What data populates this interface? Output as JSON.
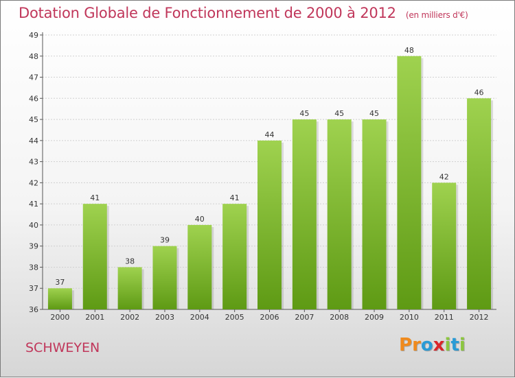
{
  "header": {
    "title": "Dotation Globale de Fonctionnement de 2000 à 2012",
    "unit": "(en milliers d'€)"
  },
  "footer": {
    "commune": "SCHWEYEN",
    "logo_letters": [
      "P",
      "r",
      "o",
      "x",
      "i",
      "t",
      "i"
    ],
    "logo_colors": [
      "#f08a1c",
      "#f08a1c",
      "#2a9bd6",
      "#d9262a",
      "#8cc63f",
      "#2a9bd6",
      "#8cc63f"
    ]
  },
  "colors": {
    "title": "#c0365a",
    "bar_top": "#9fd24f",
    "bar_bottom": "#5e9a14",
    "grid": "#d0d0d0"
  },
  "chart_data": {
    "type": "bar",
    "categories": [
      "2000",
      "2001",
      "2002",
      "2003",
      "2004",
      "2005",
      "2006",
      "2007",
      "2008",
      "2009",
      "2010",
      "2011",
      "2012"
    ],
    "values": [
      37,
      41,
      38,
      39,
      40,
      41,
      44,
      45,
      45,
      45,
      48,
      42,
      46
    ],
    "ylim": [
      36,
      49
    ],
    "yticks": [
      "36",
      "37",
      "38",
      "39",
      "40",
      "41",
      "42",
      "43",
      "44",
      "45",
      "46",
      "47",
      "48",
      "49"
    ],
    "grid": true
  }
}
